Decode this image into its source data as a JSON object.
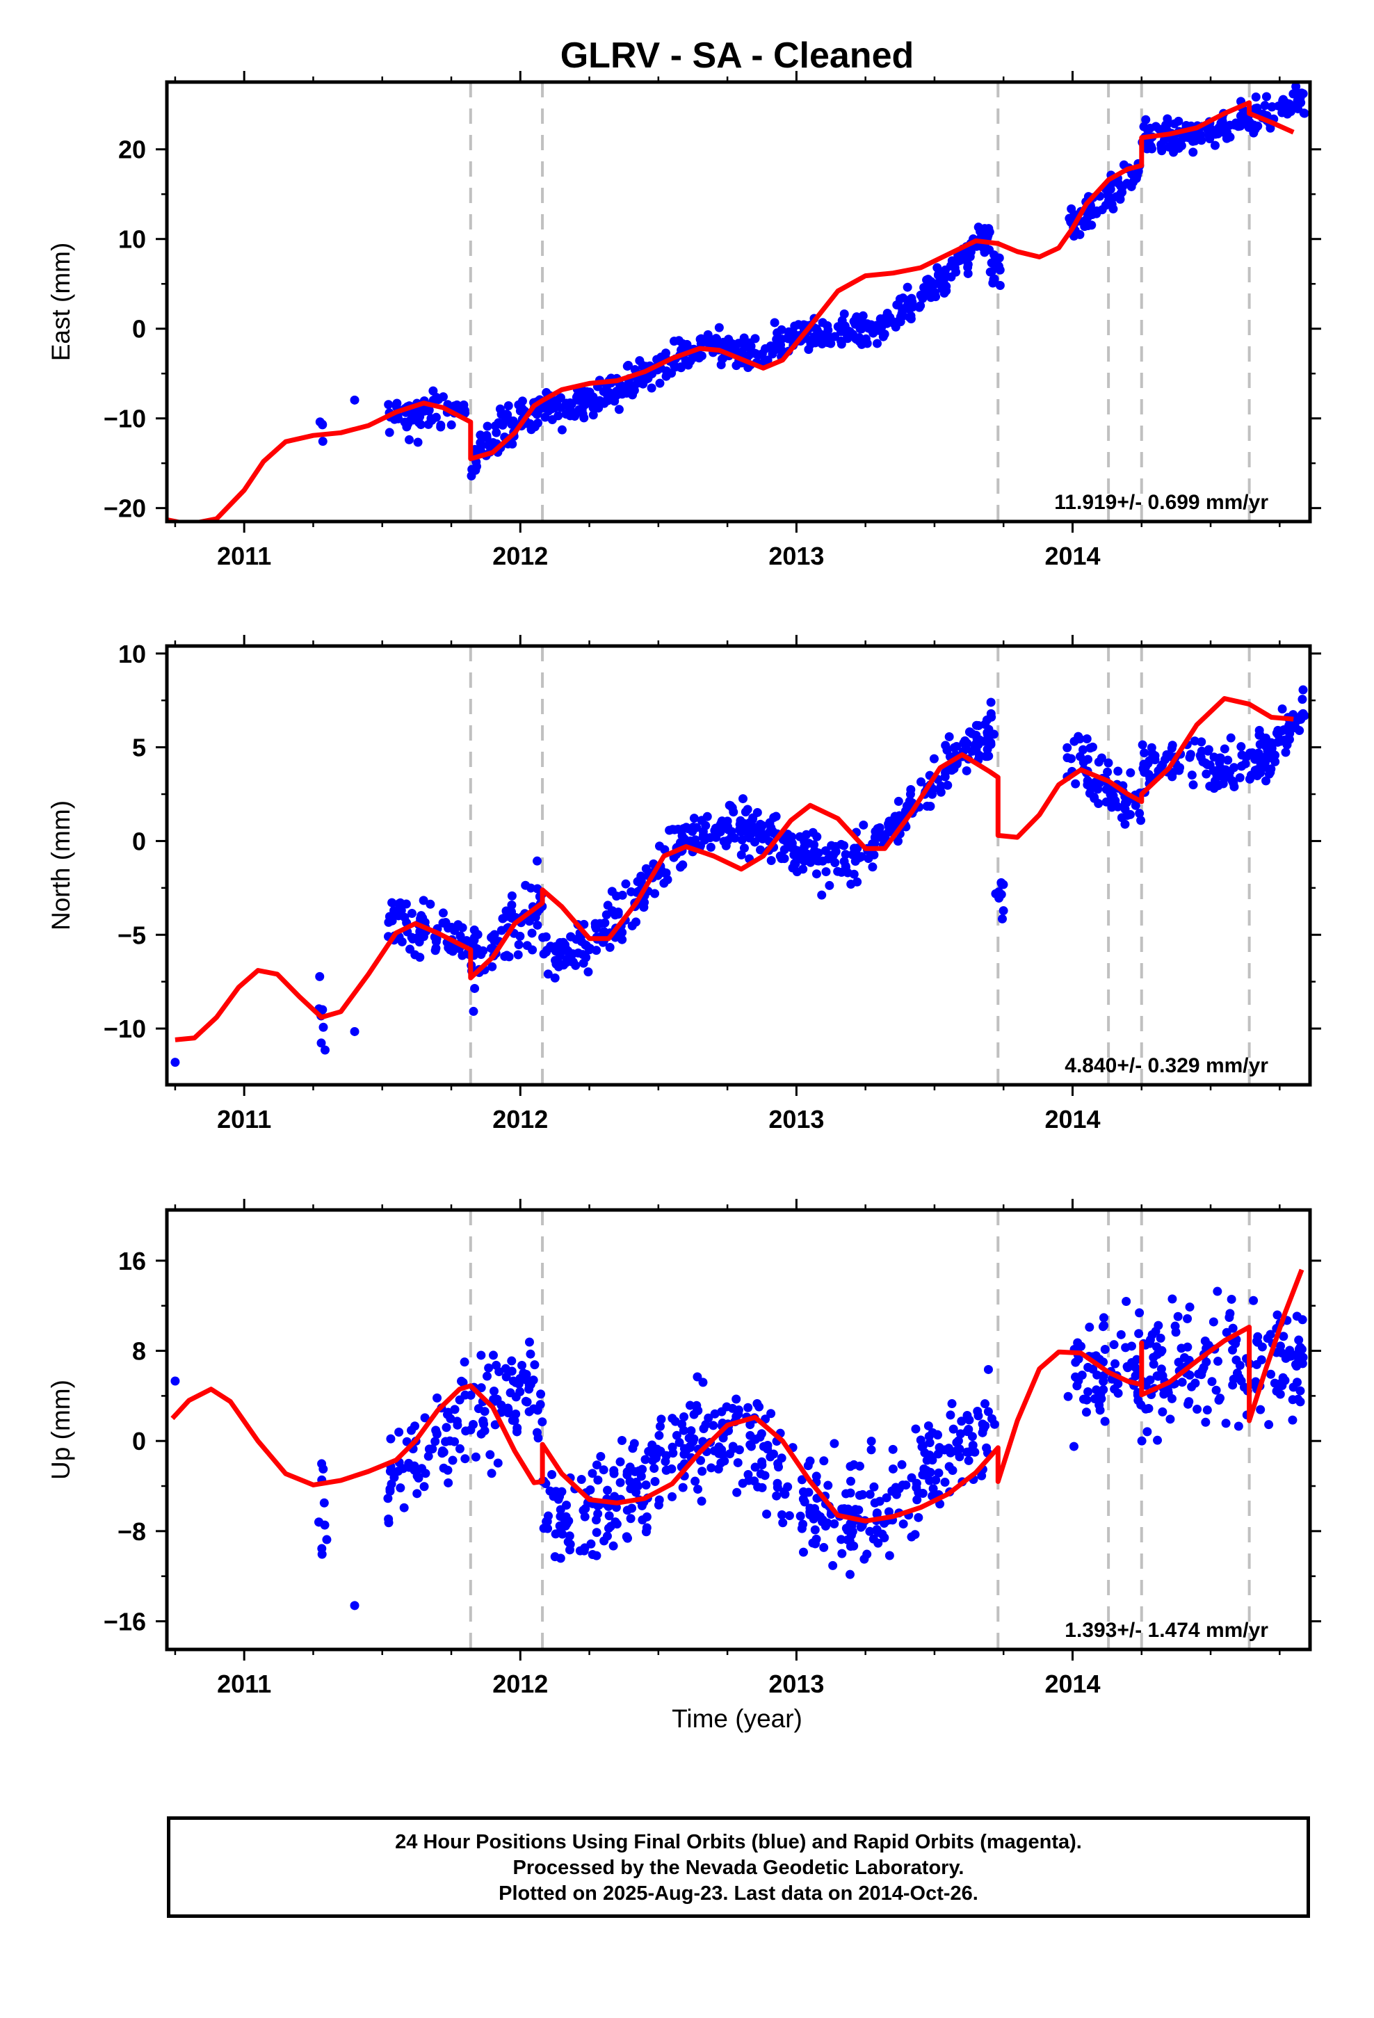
{
  "chart_data": {
    "type": "scatter",
    "title": "GLRV  - SA - Cleaned",
    "xlabel": "Time (year)",
    "xlim": [
      2010.72,
      2014.86
    ],
    "x_ticks": [
      2011,
      2012,
      2013,
      2014
    ],
    "x_tick_labels": [
      "2011",
      "2012",
      "2013",
      "2014"
    ],
    "vertical_dashed_lines": [
      2011.82,
      2012.08,
      2013.73,
      2014.13,
      2014.25,
      2014.64
    ],
    "series_styles": {
      "points": {
        "color": "#0000ff",
        "marker": "circle"
      },
      "model": {
        "color": "#ff0000",
        "line": "solid"
      },
      "events": {
        "color": "#c0c0c0",
        "line": "dashed"
      }
    },
    "panels": [
      {
        "id": "east",
        "ylabel": "East (mm)",
        "ylim": [
          -21.5,
          27.5
        ],
        "y_ticks": [
          -20,
          -10,
          0,
          10,
          20
        ],
        "y_tick_labels": [
          "−20",
          "−10",
          "0",
          "10",
          "20"
        ],
        "rate_label": "11.919+/- 0.699 mm/yr",
        "model_curve": [
          [
            2010.72,
            -21.3
          ],
          [
            2010.8,
            -21.8
          ],
          [
            2010.9,
            -21.2
          ],
          [
            2011.0,
            -18.0
          ],
          [
            2011.07,
            -14.8
          ],
          [
            2011.15,
            -12.6
          ],
          [
            2011.25,
            -11.9
          ],
          [
            2011.35,
            -11.6
          ],
          [
            2011.45,
            -10.8
          ],
          [
            2011.55,
            -9.3
          ],
          [
            2011.65,
            -8.3
          ],
          [
            2011.72,
            -8.8
          ],
          [
            2011.82,
            -10.4
          ],
          [
            2011.82,
            -14.5
          ],
          [
            2011.9,
            -13.8
          ],
          [
            2011.98,
            -11.6
          ],
          [
            2012.05,
            -8.6
          ],
          [
            2012.08,
            -8.0
          ],
          [
            2012.15,
            -6.8
          ],
          [
            2012.25,
            -6.1
          ],
          [
            2012.35,
            -5.8
          ],
          [
            2012.45,
            -4.8
          ],
          [
            2012.55,
            -3.3
          ],
          [
            2012.65,
            -2.2
          ],
          [
            2012.72,
            -2.4
          ],
          [
            2012.8,
            -3.4
          ],
          [
            2012.88,
            -4.4
          ],
          [
            2012.95,
            -3.5
          ],
          [
            2013.05,
            0.3
          ],
          [
            2013.15,
            4.2
          ],
          [
            2013.25,
            5.9
          ],
          [
            2013.35,
            6.2
          ],
          [
            2013.45,
            6.8
          ],
          [
            2013.55,
            8.3
          ],
          [
            2013.65,
            9.8
          ],
          [
            2013.73,
            9.5
          ],
          [
            2013.8,
            8.6
          ],
          [
            2013.88,
            8.0
          ],
          [
            2013.95,
            9.0
          ],
          [
            2014.0,
            11.2
          ],
          [
            2014.05,
            13.9
          ],
          [
            2014.13,
            16.6
          ],
          [
            2014.2,
            17.8
          ],
          [
            2014.25,
            18.2
          ],
          [
            2014.25,
            21.3
          ],
          [
            2014.35,
            21.7
          ],
          [
            2014.45,
            22.4
          ],
          [
            2014.55,
            24.0
          ],
          [
            2014.64,
            25.2
          ],
          [
            2014.64,
            24.0
          ],
          [
            2014.72,
            23.0
          ],
          [
            2014.8,
            21.9
          ]
        ],
        "point_clusters": [
          {
            "x": [
              2011.27,
              2011.29
            ],
            "n": 4,
            "center": -12.3,
            "amp": 0,
            "noise": 2.2,
            "phase": 0
          },
          {
            "x": [
              2011.39,
              2011.41
            ],
            "n": 1,
            "center": -7.8,
            "amp": 0,
            "noise": 0.4,
            "phase": 0
          },
          {
            "x": [
              2011.52,
              2011.8
            ],
            "n": 70,
            "base": -9.0,
            "slope": 0.9,
            "amp": 0.8,
            "noise": 1.6,
            "phase": 1.0
          },
          {
            "x": [
              2011.82,
              2012.08
            ],
            "n": 80,
            "base": -14.3,
            "slope": 22.0,
            "amp": 0,
            "noise": 1.8,
            "phase": 0
          },
          {
            "x": [
              2012.08,
              2012.9
            ],
            "n": 240,
            "base": -6.6,
            "slope": 3.5,
            "amp": 2.3,
            "noise": 1.3,
            "phase": 3.6
          },
          {
            "x": [
              2012.9,
              2013.7
            ],
            "n": 240,
            "base": -3.8,
            "slope": 16.0,
            "amp": 2.3,
            "noise": 1.3,
            "phase": 2.6
          },
          {
            "x": [
              2013.7,
              2013.74
            ],
            "n": 15,
            "center": 6.8,
            "amp": 0,
            "noise": 1.6,
            "phase": 0
          },
          {
            "x": [
              2013.98,
              2014.25
            ],
            "n": 70,
            "base": 11.0,
            "slope": 25.0,
            "amp": 0,
            "noise": 1.3,
            "phase": 0
          },
          {
            "x": [
              2014.25,
              2014.84
            ],
            "n": 160,
            "base": 20.8,
            "slope": 9.0,
            "amp": 1.2,
            "noise": 1.2,
            "phase": 1.0
          }
        ]
      },
      {
        "id": "north",
        "ylabel": "North (mm)",
        "ylim": [
          -13.0,
          10.4
        ],
        "y_ticks": [
          -10,
          -5,
          0,
          5,
          10
        ],
        "y_tick_labels": [
          "−10",
          "−5",
          "0",
          "5",
          "10"
        ],
        "rate_label": "4.840+/- 0.329 mm/yr",
        "model_curve": [
          [
            2010.75,
            -10.6
          ],
          [
            2010.82,
            -10.5
          ],
          [
            2010.9,
            -9.4
          ],
          [
            2010.98,
            -7.8
          ],
          [
            2011.05,
            -6.9
          ],
          [
            2011.12,
            -7.1
          ],
          [
            2011.2,
            -8.3
          ],
          [
            2011.28,
            -9.4
          ],
          [
            2011.35,
            -9.1
          ],
          [
            2011.45,
            -7.1
          ],
          [
            2011.55,
            -4.9
          ],
          [
            2011.62,
            -4.4
          ],
          [
            2011.7,
            -4.9
          ],
          [
            2011.78,
            -5.5
          ],
          [
            2011.82,
            -5.8
          ],
          [
            2011.82,
            -7.3
          ],
          [
            2011.9,
            -6.2
          ],
          [
            2011.98,
            -4.4
          ],
          [
            2012.08,
            -3.3
          ],
          [
            2012.08,
            -2.6
          ],
          [
            2012.15,
            -3.5
          ],
          [
            2012.25,
            -5.2
          ],
          [
            2012.32,
            -5.2
          ],
          [
            2012.42,
            -3.3
          ],
          [
            2012.52,
            -0.8
          ],
          [
            2012.6,
            -0.3
          ],
          [
            2012.7,
            -0.8
          ],
          [
            2012.8,
            -1.5
          ],
          [
            2012.88,
            -0.8
          ],
          [
            2012.98,
            1.1
          ],
          [
            2013.05,
            1.9
          ],
          [
            2013.15,
            1.2
          ],
          [
            2013.25,
            -0.4
          ],
          [
            2013.32,
            -0.4
          ],
          [
            2013.42,
            1.6
          ],
          [
            2013.52,
            3.9
          ],
          [
            2013.6,
            4.6
          ],
          [
            2013.7,
            3.7
          ],
          [
            2013.73,
            3.4
          ],
          [
            2013.73,
            0.3
          ],
          [
            2013.8,
            0.2
          ],
          [
            2013.88,
            1.4
          ],
          [
            2013.95,
            3.0
          ],
          [
            2014.03,
            3.8
          ],
          [
            2014.13,
            3.2
          ],
          [
            2014.2,
            2.5
          ],
          [
            2014.25,
            2.1
          ],
          [
            2014.25,
            2.5
          ],
          [
            2014.35,
            3.9
          ],
          [
            2014.45,
            6.2
          ],
          [
            2014.55,
            7.6
          ],
          [
            2014.64,
            7.3
          ],
          [
            2014.72,
            6.6
          ],
          [
            2014.8,
            6.5
          ]
        ],
        "point_clusters": [
          {
            "x": [
              2010.74,
              2010.76
            ],
            "n": 1,
            "center": -11.6,
            "amp": 0,
            "noise": 0.3,
            "phase": 0
          },
          {
            "x": [
              2011.27,
              2011.3
            ],
            "n": 8,
            "center": -9.8,
            "amp": 0,
            "noise": 1.6,
            "phase": 0
          },
          {
            "x": [
              2011.39,
              2011.41
            ],
            "n": 1,
            "center": -10.0,
            "amp": 0,
            "noise": 0.3,
            "phase": 0
          },
          {
            "x": [
              2011.52,
              2011.82
            ],
            "n": 75,
            "base": -4.4,
            "slope": -3.0,
            "amp": 0,
            "noise": 1.0,
            "phase": 0
          },
          {
            "x": [
              2011.82,
              2012.08
            ],
            "n": 70,
            "base": -6.9,
            "slope": 15.0,
            "amp": 0,
            "noise": 1.3,
            "phase": 0
          },
          {
            "x": [
              2012.08,
              2013.73
            ],
            "n": 460,
            "base": -4.4,
            "slope": 5.0,
            "amp": 2.0,
            "noise": 0.9,
            "phase": 3.5
          },
          {
            "x": [
              2013.72,
              2013.75
            ],
            "n": 9,
            "center": -2.9,
            "amp": 0,
            "noise": 1.2,
            "phase": 0
          },
          {
            "x": [
              2013.98,
              2014.25
            ],
            "n": 70,
            "base": 4.4,
            "slope": -10.0,
            "amp": 0,
            "noise": 1.1,
            "phase": 0
          },
          {
            "x": [
              2014.25,
              2014.84
            ],
            "n": 160,
            "base": 2.8,
            "slope": 8.0,
            "amp": 1.7,
            "noise": 0.9,
            "phase": 0.5
          }
        ]
      },
      {
        "id": "up",
        "ylabel": "Up (mm)",
        "ylim": [
          -18.5,
          20.5
        ],
        "y_ticks": [
          -16,
          -8,
          0,
          8,
          16
        ],
        "y_tick_labels": [
          "−16",
          "−8",
          "0",
          "8",
          "16"
        ],
        "rate_label": "1.393+/- 1.474 mm/yr",
        "model_curve": [
          [
            2010.74,
            2.0
          ],
          [
            2010.8,
            3.6
          ],
          [
            2010.88,
            4.6
          ],
          [
            2010.95,
            3.5
          ],
          [
            2011.05,
            0.0
          ],
          [
            2011.15,
            -2.9
          ],
          [
            2011.25,
            -3.9
          ],
          [
            2011.35,
            -3.5
          ],
          [
            2011.45,
            -2.7
          ],
          [
            2011.55,
            -1.7
          ],
          [
            2011.62,
            0.0
          ],
          [
            2011.7,
            2.7
          ],
          [
            2011.78,
            4.6
          ],
          [
            2011.82,
            4.9
          ],
          [
            2011.9,
            3.0
          ],
          [
            2011.98,
            -0.9
          ],
          [
            2012.05,
            -3.7
          ],
          [
            2012.08,
            -3.6
          ],
          [
            2012.08,
            -0.3
          ],
          [
            2012.15,
            -2.9
          ],
          [
            2012.25,
            -5.2
          ],
          [
            2012.35,
            -5.5
          ],
          [
            2012.45,
            -5.1
          ],
          [
            2012.55,
            -3.8
          ],
          [
            2012.65,
            -1.0
          ],
          [
            2012.75,
            1.4
          ],
          [
            2012.85,
            2.1
          ],
          [
            2012.95,
            0.0
          ],
          [
            2013.05,
            -3.6
          ],
          [
            2013.15,
            -6.6
          ],
          [
            2013.25,
            -7.1
          ],
          [
            2013.35,
            -6.7
          ],
          [
            2013.45,
            -5.9
          ],
          [
            2013.55,
            -4.7
          ],
          [
            2013.65,
            -2.8
          ],
          [
            2013.73,
            -0.6
          ],
          [
            2013.73,
            -3.6
          ],
          [
            2013.8,
            1.8
          ],
          [
            2013.88,
            6.4
          ],
          [
            2013.95,
            7.9
          ],
          [
            2014.03,
            7.8
          ],
          [
            2014.13,
            6.1
          ],
          [
            2014.2,
            5.3
          ],
          [
            2014.25,
            5.0
          ],
          [
            2014.25,
            8.7
          ],
          [
            2014.25,
            4.1
          ],
          [
            2014.35,
            5.2
          ],
          [
            2014.45,
            7.1
          ],
          [
            2014.55,
            8.9
          ],
          [
            2014.64,
            10.1
          ],
          [
            2014.64,
            1.8
          ],
          [
            2014.7,
            6.4
          ],
          [
            2014.77,
            11.4
          ],
          [
            2014.83,
            15.2
          ]
        ],
        "point_clusters": [
          {
            "x": [
              2010.74,
              2010.76
            ],
            "n": 1,
            "center": 5.4,
            "amp": 0,
            "noise": 0.3,
            "phase": 0
          },
          {
            "x": [
              2011.27,
              2011.3
            ],
            "n": 10,
            "center": -6.0,
            "amp": 0,
            "noise": 4.5,
            "phase": 0
          },
          {
            "x": [
              2011.39,
              2011.41
            ],
            "n": 1,
            "center": -14.8,
            "amp": 0,
            "noise": 0.3,
            "phase": 0
          },
          {
            "x": [
              2011.52,
              2012.08
            ],
            "n": 140,
            "base": 1.0,
            "slope": 0.0,
            "amp": 3.5,
            "noise": 3.5,
            "phase": 1.4
          },
          {
            "x": [
              2012.08,
              2013.73
            ],
            "n": 460,
            "base": -3.0,
            "slope": 0.0,
            "amp": 4.0,
            "noise": 3.3,
            "phase": 3.4
          },
          {
            "x": [
              2013.98,
              2014.25
            ],
            "n": 70,
            "base": 6.0,
            "slope": 0.0,
            "amp": 0,
            "noise": 4.0,
            "phase": 0
          },
          {
            "x": [
              2014.25,
              2014.84
            ],
            "n": 160,
            "base": 5.5,
            "slope": 4.0,
            "amp": 0,
            "noise": 3.8,
            "phase": 0
          }
        ]
      }
    ]
  },
  "footer": {
    "line1": "24 Hour Positions Using Final Orbits (blue) and Rapid Orbits (magenta).",
    "line2": "Processed by the Nevada Geodetic Laboratory.",
    "line3": "Plotted on 2025-Aug-23. Last data on 2014-Oct-26."
  }
}
